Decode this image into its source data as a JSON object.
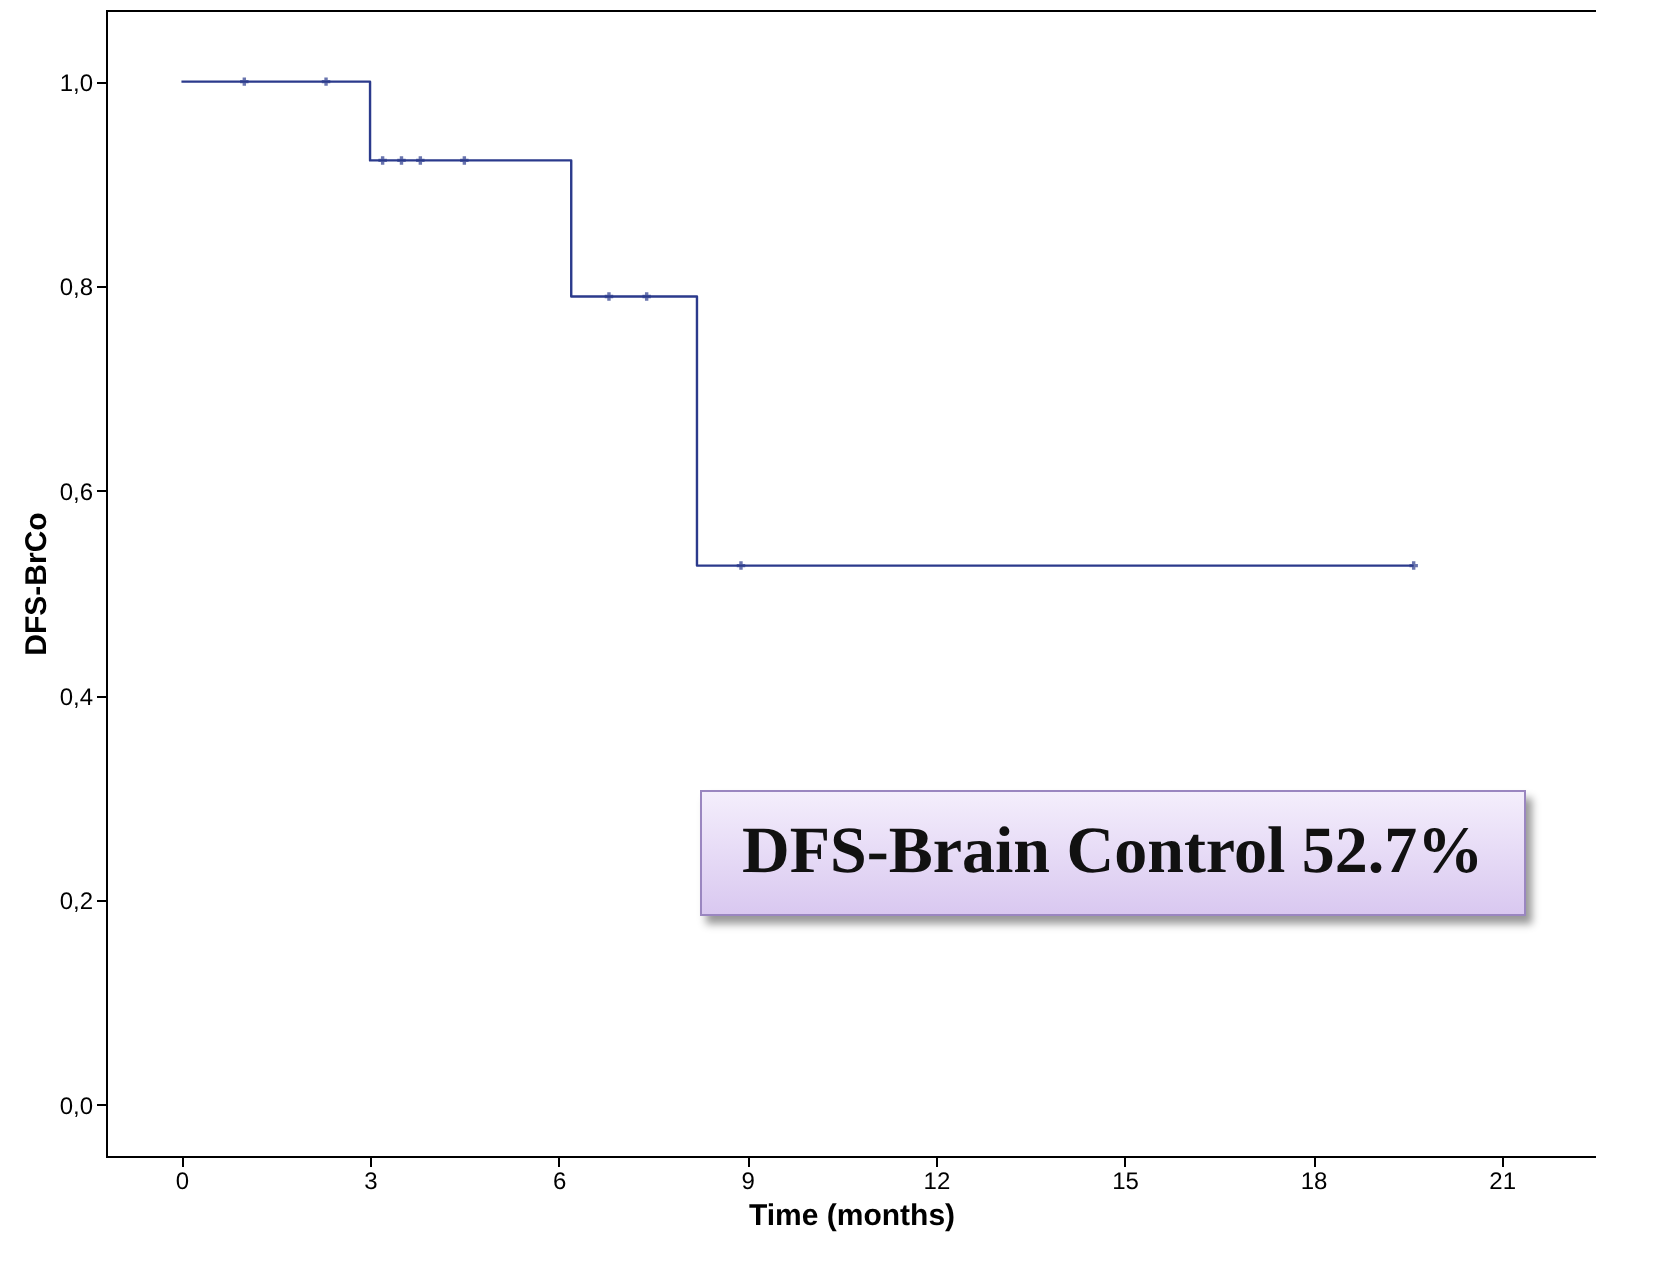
{
  "chart_data": {
    "type": "step",
    "xlabel": "Time (months)",
    "ylabel": "DFS-BrCo",
    "series": [
      {
        "color": "#2b3a8c",
        "x": [
          0,
          3.0,
          6.2,
          8.2,
          19.6
        ],
        "values": [
          1.0,
          0.923,
          0.79,
          0.527,
          0.527
        ]
      },
      {
        "type": "scatter",
        "color": "#2b3a8c",
        "marker": "cross",
        "x": [
          1.0,
          2.3,
          3.2,
          3.5,
          3.8,
          4.5,
          6.8,
          7.4,
          8.9,
          19.6
        ],
        "values": [
          1.0,
          1.0,
          0.923,
          0.923,
          0.923,
          0.923,
          0.79,
          0.79,
          0.527,
          0.527
        ]
      }
    ],
    "xlim": [
      -1.2,
      22.5
    ],
    "xticks": [
      0,
      3,
      6,
      9,
      12,
      15,
      18,
      21
    ],
    "ylim": [
      -0.05,
      1.07
    ],
    "yticks": [
      {
        "value": 0,
        "label": "0,0"
      },
      {
        "value": 0.2,
        "label": "0,2"
      },
      {
        "value": 0.4,
        "label": "0,4"
      },
      {
        "value": 0.6,
        "label": "0,6"
      },
      {
        "value": 0.8,
        "label": "0,8"
      },
      {
        "value": 1.0,
        "label": "1,0"
      }
    ],
    "grid": false,
    "annotations": [
      "DFS-Brain Control 52.7%"
    ]
  }
}
